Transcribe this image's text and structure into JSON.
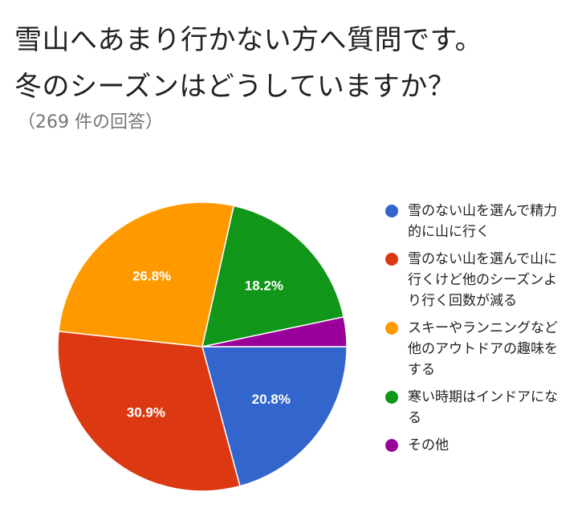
{
  "header": {
    "title_line1": "雪山へあまり行かない方へ質問です。",
    "title_line2": "冬のシーズンはどうしていますか？",
    "response_count": "（269 件の回答）"
  },
  "chart_data": {
    "type": "pie",
    "title": "雪山へあまり行かない方へ質問です。冬のシーズンはどうしていますか？",
    "legend_position": "right",
    "slices": [
      {
        "label": "雪のない山を選んで精力的に山に行く",
        "value": 20.8,
        "value_label": "20.8%",
        "color": "#3366CC"
      },
      {
        "label": "雪のない山を選んで山に行くけど他のシーズンより行く回数が減る",
        "value": 30.9,
        "value_label": "30.9%",
        "color": "#DC3912"
      },
      {
        "label": "スキーやランニングなど他のアウトドアの趣味をする",
        "value": 26.8,
        "value_label": "26.8%",
        "color": "#FF9900"
      },
      {
        "label": "寒い時期はインドアになる",
        "value": 18.2,
        "value_label": "18.2%",
        "color": "#109618"
      },
      {
        "label": "その他",
        "value": 3.3,
        "value_label": "",
        "color": "#990099"
      }
    ]
  }
}
